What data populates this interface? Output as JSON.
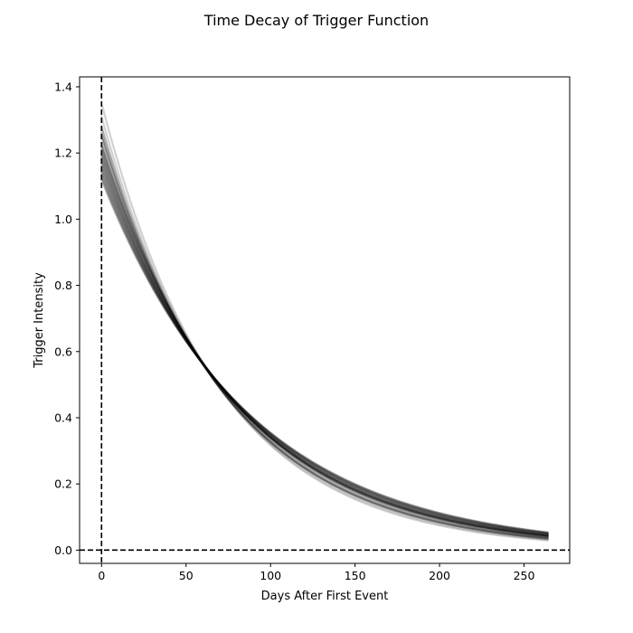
{
  "chart_data": {
    "type": "line",
    "title": "Time Decay of Trigger Function",
    "xlabel": "Days After First Event",
    "ylabel": "Trigger Intensity",
    "xlim": [
      -13,
      277
    ],
    "ylim": [
      -0.04,
      1.43
    ],
    "x_ticks": [
      0,
      50,
      100,
      150,
      200,
      250
    ],
    "y_ticks": [
      0.0,
      0.2,
      0.4,
      0.6,
      0.8,
      1.0,
      1.2,
      1.4
    ],
    "x_tick_labels": [
      "0",
      "50",
      "100",
      "150",
      "200",
      "250"
    ],
    "y_tick_labels": [
      "0.0",
      "0.2",
      "0.4",
      "0.6",
      "0.8",
      "1.0",
      "1.2",
      "1.4"
    ],
    "grid": false,
    "legend": "none",
    "line_color": "#000000",
    "reference_lines": [
      {
        "orientation": "vertical",
        "value": 0,
        "style": "dashed"
      },
      {
        "orientation": "horizontal",
        "value": 0,
        "style": "dashed"
      }
    ],
    "series_model": "exponential decay: intensity = a * exp(-x / tau)",
    "x_range": [
      0,
      264
    ],
    "representative_points": [
      {
        "x": 0,
        "y": 1.19
      },
      {
        "x": 50,
        "y": 0.69
      },
      {
        "x": 100,
        "y": 0.33
      },
      {
        "x": 150,
        "y": 0.17
      },
      {
        "x": 200,
        "y": 0.09
      },
      {
        "x": 250,
        "y": 0.045
      },
      {
        "x": 264,
        "y": 0.037
      }
    ],
    "series": [
      {
        "a": 1.35,
        "tau": 69
      },
      {
        "a": 1.31,
        "tau": 71
      },
      {
        "a": 1.28,
        "tau": 73
      },
      {
        "a": 1.26,
        "tau": 74
      },
      {
        "a": 1.25,
        "tau": 75
      },
      {
        "a": 1.23,
        "tau": 77
      },
      {
        "a": 1.22,
        "tau": 78
      },
      {
        "a": 1.21,
        "tau": 79
      },
      {
        "a": 1.2,
        "tau": 79.5
      },
      {
        "a": 1.19,
        "tau": 80
      },
      {
        "a": 1.18,
        "tau": 81
      },
      {
        "a": 1.17,
        "tau": 82
      },
      {
        "a": 1.16,
        "tau": 83
      },
      {
        "a": 1.15,
        "tau": 84
      },
      {
        "a": 1.14,
        "tau": 85
      },
      {
        "a": 1.13,
        "tau": 86
      },
      {
        "a": 1.12,
        "tau": 87
      }
    ]
  }
}
